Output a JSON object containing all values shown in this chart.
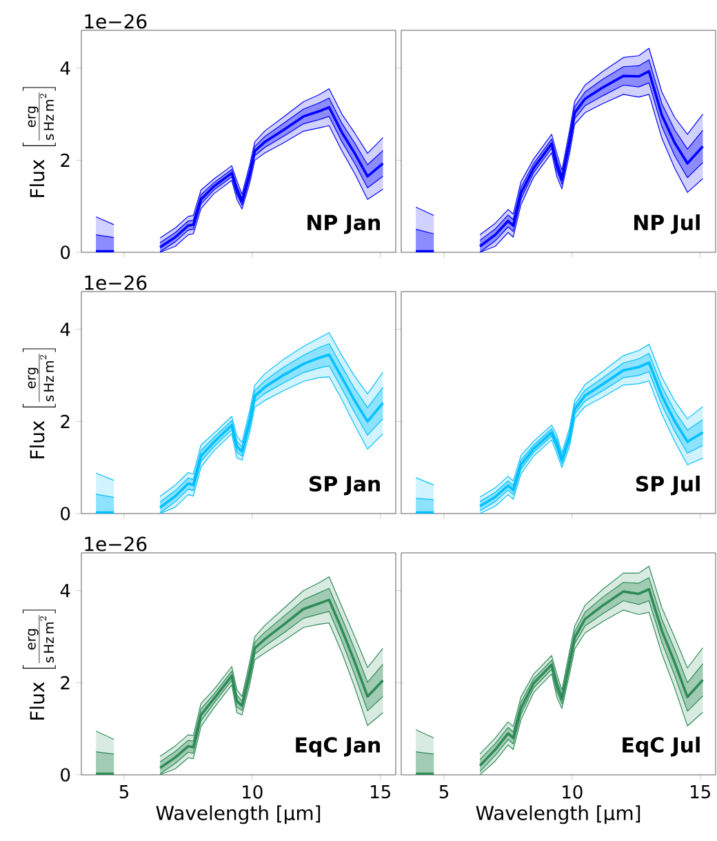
{
  "chart_data": [
    {
      "type": "line",
      "title": "NP Jan",
      "annotations": [
        "1e−26"
      ],
      "ylabel": "\\mathrm{Flux}\\ \\left[\\frac{\\mathrm{erg}}{\\mathrm{s\\,Hz\\,m}^{2}}\\right]",
      "tick_labels": "y",
      "xlim": [
        3.33,
        15.6
      ],
      "ylim": [
        0,
        4.82
      ],
      "xticks": [
        5,
        10,
        15
      ],
      "yticks": [
        0,
        2,
        4
      ],
      "x": [
        3.9,
        4.6,
        5.5,
        6.4,
        7.0,
        7.5,
        7.7,
        8.0,
        8.5,
        9.2,
        9.4,
        9.6,
        9.9,
        10.1,
        10.5,
        11.2,
        12.0,
        12.6,
        13.0,
        13.5,
        14.0,
        14.5,
        15.1
      ],
      "series": [
        {
          "color": "#0000ff",
          "values": [
            0.02,
            0.02,
            null,
            0.11,
            0.33,
            0.58,
            0.6,
            1.15,
            1.43,
            1.72,
            1.35,
            1.1,
            1.7,
            2.2,
            2.4,
            2.65,
            2.95,
            3.06,
            3.15,
            2.6,
            2.15,
            1.65,
            1.93
          ]
        },
        {
          "color": "#0000ff",
          "values": [
            0,
            0,
            null,
            0,
            0.13,
            0.38,
            0.4,
            0.95,
            1.27,
            1.56,
            1.15,
            0.94,
            1.5,
            2.0,
            2.16,
            2.37,
            2.63,
            2.7,
            2.75,
            2.2,
            1.71,
            1.15,
            1.37
          ]
        },
        {
          "color": "#0000ff",
          "values": [
            0.77,
            0.6,
            null,
            0.31,
            0.53,
            0.78,
            0.8,
            1.35,
            1.59,
            1.88,
            1.55,
            1.26,
            1.9,
            2.4,
            2.64,
            2.93,
            3.27,
            3.42,
            3.55,
            3.0,
            2.59,
            2.15,
            2.49
          ],
          "lower": [
            0,
            0,
            null,
            0,
            0.13,
            0.38,
            0.4,
            0.95,
            1.27,
            1.56,
            1.15,
            0.94,
            1.5,
            2.0,
            2.16,
            2.37,
            2.63,
            2.7,
            2.75,
            2.2,
            1.71,
            1.15,
            1.37
          ],
          "upper": [
            0.77,
            0.6,
            null,
            0.31,
            0.53,
            0.78,
            0.8,
            1.35,
            1.59,
            1.88,
            1.55,
            1.26,
            1.9,
            2.4,
            2.64,
            2.93,
            3.27,
            3.42,
            3.55,
            3.0,
            2.59,
            2.15,
            2.49
          ]
        },
        {
          "color": "#0000ff",
          "values": [
            0,
            0,
            null,
            0.01,
            0.23,
            0.48,
            0.5,
            1.05,
            1.35,
            1.64,
            1.25,
            1.02,
            1.6,
            2.1,
            2.28,
            2.51,
            2.79,
            2.88,
            2.95,
            2.4,
            1.93,
            1.4,
            1.65
          ]
        },
        {
          "color": "#0000ff",
          "values": [
            0.38,
            0.32,
            null,
            0.21,
            0.43,
            0.68,
            0.7,
            1.25,
            1.51,
            1.8,
            1.45,
            1.18,
            1.8,
            2.3,
            2.52,
            2.79,
            3.11,
            3.24,
            3.35,
            2.8,
            2.37,
            1.9,
            2.21
          ],
          "lower": [
            0,
            0,
            null,
            0.01,
            0.23,
            0.48,
            0.5,
            1.05,
            1.35,
            1.64,
            1.25,
            1.02,
            1.6,
            2.1,
            2.28,
            2.51,
            2.79,
            2.88,
            2.95,
            2.4,
            1.93,
            1.4,
            1.65
          ],
          "upper": [
            0.38,
            0.32,
            null,
            0.21,
            0.43,
            0.68,
            0.7,
            1.25,
            1.51,
            1.8,
            1.45,
            1.18,
            1.8,
            2.3,
            2.52,
            2.79,
            3.11,
            3.24,
            3.35,
            2.8,
            2.37,
            1.9,
            2.21
          ]
        }
      ]
    },
    {
      "type": "line",
      "title": "NP Jul",
      "tick_labels": false,
      "xlim": [
        3.33,
        15.6
      ],
      "ylim": [
        0,
        4.82
      ],
      "xticks": [
        5,
        10,
        15
      ],
      "yticks": [
        0,
        2,
        4
      ],
      "x": [
        3.9,
        4.6,
        5.5,
        6.4,
        7.0,
        7.5,
        7.7,
        8.0,
        8.5,
        9.2,
        9.4,
        9.6,
        9.9,
        10.1,
        10.5,
        11.2,
        12.0,
        12.6,
        13.0,
        13.5,
        14.0,
        14.5,
        15.1
      ],
      "series": [
        {
          "color": "#0000ff",
          "values": [
            0.02,
            0.02,
            null,
            0.13,
            0.38,
            0.68,
            0.58,
            1.28,
            1.83,
            2.36,
            1.9,
            1.58,
            2.4,
            3.03,
            3.33,
            3.58,
            3.83,
            3.82,
            3.93,
            2.98,
            2.38,
            1.93,
            2.3
          ]
        },
        {
          "color": "#0000ff",
          "values": [
            0,
            0,
            null,
            0,
            0.13,
            0.43,
            0.33,
            1.03,
            1.63,
            2.16,
            1.65,
            1.38,
            2.15,
            2.78,
            3.03,
            3.23,
            3.43,
            3.37,
            3.43,
            2.48,
            1.83,
            1.3,
            1.6
          ]
        },
        {
          "color": "#0000ff",
          "values": [
            0.98,
            0.8,
            null,
            0.38,
            0.63,
            0.93,
            0.83,
            1.53,
            2.03,
            2.56,
            2.15,
            1.78,
            2.65,
            3.28,
            3.63,
            3.93,
            4.23,
            4.27,
            4.43,
            3.48,
            2.93,
            2.56,
            3.0
          ],
          "lower": [
            0,
            0,
            null,
            0,
            0.13,
            0.43,
            0.33,
            1.03,
            1.63,
            2.16,
            1.65,
            1.38,
            2.15,
            2.78,
            3.03,
            3.23,
            3.43,
            3.37,
            3.43,
            2.48,
            1.83,
            1.3,
            1.6
          ],
          "upper": [
            0.98,
            0.8,
            null,
            0.38,
            0.63,
            0.93,
            0.83,
            1.53,
            2.03,
            2.56,
            2.15,
            1.78,
            2.65,
            3.28,
            3.63,
            3.93,
            4.23,
            4.27,
            4.43,
            3.48,
            2.93,
            2.56,
            3.0
          ]
        },
        {
          "color": "#0000ff",
          "values": [
            0,
            0,
            null,
            0,
            0.25,
            0.55,
            0.45,
            1.15,
            1.73,
            2.26,
            1.77,
            1.48,
            2.27,
            2.9,
            3.18,
            3.4,
            3.63,
            3.59,
            3.68,
            2.73,
            2.1,
            1.62,
            1.95
          ]
        },
        {
          "color": "#0000ff",
          "values": [
            0.5,
            0.4,
            null,
            0.26,
            0.51,
            0.81,
            0.71,
            1.41,
            1.93,
            2.46,
            2.03,
            1.68,
            2.53,
            3.16,
            3.48,
            3.76,
            4.03,
            4.05,
            4.18,
            3.23,
            2.66,
            2.24,
            2.65
          ],
          "lower": [
            0,
            0,
            null,
            0,
            0.25,
            0.55,
            0.45,
            1.15,
            1.73,
            2.26,
            1.77,
            1.48,
            2.27,
            2.9,
            3.18,
            3.4,
            3.63,
            3.59,
            3.68,
            2.73,
            2.1,
            1.62,
            1.95
          ],
          "upper": [
            0.5,
            0.4,
            null,
            0.26,
            0.51,
            0.81,
            0.71,
            1.41,
            1.93,
            2.46,
            2.03,
            1.68,
            2.53,
            3.16,
            3.48,
            3.76,
            4.03,
            4.05,
            4.18,
            3.23,
            2.66,
            2.24,
            2.65
          ]
        }
      ]
    },
    {
      "type": "line",
      "title": "SP Jan",
      "annotations": [
        "1e−26"
      ],
      "ylabel": "\\mathrm{Flux}\\ \\left[\\frac{\\mathrm{erg}}{\\mathrm{s\\,Hz\\,m}^{2}}\\right]",
      "tick_labels": "y",
      "xlim": [
        3.33,
        15.6
      ],
      "ylim": [
        0,
        4.82
      ],
      "xticks": [
        5,
        10,
        15
      ],
      "yticks": [
        0,
        2,
        4
      ],
      "x": [
        3.9,
        4.6,
        5.5,
        6.4,
        7.0,
        7.5,
        7.7,
        8.0,
        8.5,
        9.2,
        9.4,
        9.6,
        9.9,
        10.1,
        10.5,
        11.2,
        12.0,
        12.6,
        13.0,
        13.5,
        14.0,
        14.5,
        15.1
      ],
      "series": [
        {
          "color": "#00bfff",
          "values": [
            0.02,
            0.02,
            null,
            0.13,
            0.38,
            0.65,
            0.62,
            1.25,
            1.55,
            1.92,
            1.45,
            1.35,
            2.0,
            2.55,
            2.75,
            3.0,
            3.25,
            3.38,
            3.45,
            2.95,
            2.45,
            2.0,
            2.4
          ]
        },
        {
          "color": "#00bfff",
          "values": [
            0,
            0,
            null,
            0,
            0.14,
            0.41,
            0.38,
            1.01,
            1.36,
            1.73,
            1.21,
            1.16,
            1.76,
            2.31,
            2.46,
            2.66,
            2.87,
            2.95,
            2.97,
            2.47,
            1.92,
            1.4,
            1.73
          ]
        },
        {
          "color": "#00bfff",
          "values": [
            0.88,
            0.72,
            null,
            0.37,
            0.62,
            0.89,
            0.86,
            1.49,
            1.74,
            2.11,
            1.69,
            1.54,
            2.24,
            2.79,
            3.04,
            3.34,
            3.63,
            3.81,
            3.93,
            3.43,
            2.98,
            2.6,
            3.07
          ],
          "lower": [
            0,
            0,
            null,
            0,
            0.14,
            0.41,
            0.38,
            1.01,
            1.36,
            1.73,
            1.21,
            1.16,
            1.76,
            2.31,
            2.46,
            2.66,
            2.87,
            2.95,
            2.97,
            2.47,
            1.92,
            1.4,
            1.73
          ],
          "upper": [
            0.88,
            0.72,
            null,
            0.37,
            0.62,
            0.89,
            0.86,
            1.49,
            1.74,
            2.11,
            1.69,
            1.54,
            2.24,
            2.79,
            3.04,
            3.34,
            3.63,
            3.81,
            3.93,
            3.43,
            2.98,
            2.6,
            3.07
          ]
        },
        {
          "color": "#00bfff",
          "values": [
            0,
            0,
            null,
            0.01,
            0.26,
            0.53,
            0.5,
            1.13,
            1.45,
            1.82,
            1.33,
            1.25,
            1.88,
            2.43,
            2.61,
            2.83,
            3.06,
            3.16,
            3.21,
            2.71,
            2.19,
            1.7,
            2.06
          ]
        },
        {
          "color": "#00bfff",
          "values": [
            0.42,
            0.35,
            null,
            0.25,
            0.5,
            0.77,
            0.74,
            1.37,
            1.65,
            2.02,
            1.57,
            1.45,
            2.12,
            2.67,
            2.89,
            3.17,
            3.44,
            3.6,
            3.69,
            3.19,
            2.71,
            2.3,
            2.74
          ],
          "lower": [
            0,
            0,
            null,
            0.01,
            0.26,
            0.53,
            0.5,
            1.13,
            1.45,
            1.82,
            1.33,
            1.25,
            1.88,
            2.43,
            2.61,
            2.83,
            3.06,
            3.16,
            3.21,
            2.71,
            2.19,
            1.7,
            2.06
          ],
          "upper": [
            0.42,
            0.35,
            null,
            0.25,
            0.5,
            0.77,
            0.74,
            1.37,
            1.65,
            2.02,
            1.57,
            1.45,
            2.12,
            2.67,
            2.89,
            3.17,
            3.44,
            3.6,
            3.69,
            3.19,
            2.71,
            2.3,
            2.74
          ]
        }
      ]
    },
    {
      "type": "line",
      "title": "SP Jul",
      "tick_labels": false,
      "xlim": [
        3.33,
        15.6
      ],
      "ylim": [
        0,
        4.82
      ],
      "xticks": [
        5,
        10,
        15
      ],
      "yticks": [
        0,
        2,
        4
      ],
      "x": [
        3.9,
        4.6,
        5.5,
        6.4,
        7.0,
        7.5,
        7.7,
        8.0,
        8.5,
        9.2,
        9.4,
        9.6,
        9.9,
        10.1,
        10.5,
        11.2,
        12.0,
        12.6,
        13.0,
        13.5,
        14.0,
        14.5,
        15.1
      ],
      "series": [
        {
          "color": "#00bfff",
          "values": [
            0.02,
            0.02,
            null,
            0.16,
            0.36,
            0.61,
            0.51,
            1.06,
            1.41,
            1.76,
            1.51,
            1.16,
            1.66,
            2.26,
            2.56,
            2.81,
            3.11,
            3.18,
            3.28,
            2.56,
            2.01,
            1.56,
            1.76
          ]
        },
        {
          "color": "#00bfff",
          "values": [
            0,
            0,
            null,
            0,
            0.16,
            0.41,
            0.31,
            0.86,
            1.25,
            1.6,
            1.31,
            1.0,
            1.46,
            2.06,
            2.32,
            2.53,
            2.79,
            2.82,
            2.88,
            2.16,
            1.57,
            1.06,
            1.2
          ]
        },
        {
          "color": "#00bfff",
          "values": [
            0.78,
            0.62,
            null,
            0.36,
            0.56,
            0.81,
            0.71,
            1.26,
            1.57,
            1.92,
            1.71,
            1.32,
            1.86,
            2.46,
            2.8,
            3.09,
            3.43,
            3.54,
            3.68,
            2.96,
            2.45,
            2.06,
            2.32
          ],
          "lower": [
            0,
            0,
            null,
            0,
            0.16,
            0.41,
            0.31,
            0.86,
            1.25,
            1.6,
            1.31,
            1.0,
            1.46,
            2.06,
            2.32,
            2.53,
            2.79,
            2.82,
            2.88,
            2.16,
            1.57,
            1.06,
            1.2
          ],
          "upper": [
            0.78,
            0.62,
            null,
            0.36,
            0.56,
            0.81,
            0.71,
            1.26,
            1.57,
            1.92,
            1.71,
            1.32,
            1.86,
            2.46,
            2.8,
            3.09,
            3.43,
            3.54,
            3.68,
            2.96,
            2.45,
            2.06,
            2.32
          ]
        },
        {
          "color": "#00bfff",
          "values": [
            0,
            0,
            null,
            0.06,
            0.26,
            0.51,
            0.41,
            0.96,
            1.33,
            1.68,
            1.41,
            1.08,
            1.56,
            2.16,
            2.44,
            2.67,
            2.95,
            3.0,
            3.08,
            2.36,
            1.79,
            1.31,
            1.48
          ]
        },
        {
          "color": "#00bfff",
          "values": [
            0.33,
            0.3,
            null,
            0.26,
            0.46,
            0.71,
            0.61,
            1.16,
            1.49,
            1.84,
            1.61,
            1.24,
            1.76,
            2.36,
            2.68,
            2.95,
            3.27,
            3.36,
            3.48,
            2.76,
            2.23,
            1.81,
            2.04
          ],
          "lower": [
            0,
            0,
            null,
            0.06,
            0.26,
            0.51,
            0.41,
            0.96,
            1.33,
            1.68,
            1.41,
            1.08,
            1.56,
            2.16,
            2.44,
            2.67,
            2.95,
            3.0,
            3.08,
            2.36,
            1.79,
            1.31,
            1.48
          ],
          "upper": [
            0.33,
            0.3,
            null,
            0.26,
            0.46,
            0.71,
            0.61,
            1.16,
            1.49,
            1.84,
            1.61,
            1.24,
            1.76,
            2.36,
            2.68,
            2.95,
            3.27,
            3.36,
            3.48,
            2.76,
            2.23,
            1.81,
            2.04
          ]
        }
      ]
    },
    {
      "type": "line",
      "title": "EqC Jan",
      "annotations": [
        "1e−26"
      ],
      "xlabel": "Wavelength [μm]",
      "ylabel": "\\mathrm{Flux}\\ \\left[\\frac{\\mathrm{erg}}{\\mathrm{s\\,Hz\\,m}^{2}}\\right]",
      "xlim": [
        3.33,
        15.6
      ],
      "ylim": [
        0,
        4.82
      ],
      "xticks": [
        5,
        10,
        15
      ],
      "yticks": [
        0,
        2,
        4
      ],
      "x": [
        3.9,
        4.6,
        5.5,
        6.4,
        7.0,
        7.5,
        7.7,
        8.0,
        8.5,
        9.2,
        9.4,
        9.6,
        9.9,
        10.1,
        10.5,
        11.2,
        12.0,
        12.6,
        13.0,
        13.5,
        14.0,
        14.5,
        15.1
      ],
      "series": [
        {
          "color": "#2e8b57",
          "values": [
            0.02,
            0.02,
            null,
            0.15,
            0.38,
            0.62,
            0.6,
            1.3,
            1.65,
            2.15,
            1.6,
            1.5,
            2.2,
            2.75,
            2.95,
            3.25,
            3.6,
            3.72,
            3.8,
            3.15,
            2.45,
            1.7,
            2.05
          ]
        },
        {
          "color": "#2e8b57",
          "values": [
            0,
            0,
            null,
            0,
            0.13,
            0.37,
            0.35,
            1.05,
            1.45,
            1.95,
            1.35,
            1.3,
            1.95,
            2.5,
            2.65,
            2.9,
            3.2,
            3.27,
            3.3,
            2.65,
            1.9,
            1.07,
            1.35
          ]
        },
        {
          "color": "#2e8b57",
          "values": [
            0.95,
            0.77,
            null,
            0.4,
            0.63,
            0.87,
            0.85,
            1.55,
            1.85,
            2.35,
            1.85,
            1.7,
            2.45,
            3.0,
            3.25,
            3.6,
            4.0,
            4.17,
            4.3,
            3.65,
            3.0,
            2.33,
            2.75
          ],
          "lower": [
            0,
            0,
            null,
            0,
            0.13,
            0.37,
            0.35,
            1.05,
            1.45,
            1.95,
            1.35,
            1.3,
            1.95,
            2.5,
            2.65,
            2.9,
            3.2,
            3.27,
            3.3,
            2.65,
            1.9,
            1.07,
            1.35
          ],
          "upper": [
            0.95,
            0.77,
            null,
            0.4,
            0.63,
            0.87,
            0.85,
            1.55,
            1.85,
            2.35,
            1.85,
            1.7,
            2.45,
            3.0,
            3.25,
            3.6,
            4.0,
            4.17,
            4.3,
            3.65,
            3.0,
            2.33,
            2.75
          ]
        },
        {
          "color": "#2e8b57",
          "values": [
            0,
            0,
            null,
            0.02,
            0.25,
            0.49,
            0.47,
            1.17,
            1.55,
            2.05,
            1.47,
            1.4,
            2.07,
            2.62,
            2.8,
            3.07,
            3.4,
            3.49,
            3.55,
            2.9,
            2.17,
            1.39,
            1.7
          ]
        },
        {
          "color": "#2e8b57",
          "values": [
            0.5,
            0.45,
            null,
            0.28,
            0.51,
            0.75,
            0.73,
            1.43,
            1.75,
            2.25,
            1.73,
            1.6,
            2.33,
            2.88,
            3.1,
            3.43,
            3.8,
            3.95,
            4.05,
            3.4,
            2.73,
            2.01,
            2.4
          ],
          "lower": [
            0,
            0,
            null,
            0.02,
            0.25,
            0.49,
            0.47,
            1.17,
            1.55,
            2.05,
            1.47,
            1.4,
            2.07,
            2.62,
            2.8,
            3.07,
            3.4,
            3.49,
            3.55,
            2.9,
            2.17,
            1.39,
            1.7
          ],
          "upper": [
            0.5,
            0.45,
            null,
            0.28,
            0.51,
            0.75,
            0.73,
            1.43,
            1.75,
            2.25,
            1.73,
            1.6,
            2.33,
            2.88,
            3.1,
            3.43,
            3.8,
            3.95,
            4.05,
            3.4,
            2.73,
            2.01,
            2.4
          ]
        }
      ]
    },
    {
      "type": "line",
      "title": "EqC Jul",
      "xlabel": "Wavelength [μm]",
      "tick_labels": "x",
      "xlim": [
        3.33,
        15.6
      ],
      "ylim": [
        0,
        4.82
      ],
      "xticks": [
        5,
        10,
        15
      ],
      "yticks": [
        0,
        2,
        4
      ],
      "x": [
        3.9,
        4.6,
        5.5,
        6.4,
        7.0,
        7.5,
        7.7,
        8.0,
        8.5,
        9.2,
        9.4,
        9.6,
        9.9,
        10.1,
        10.5,
        11.2,
        12.0,
        12.6,
        13.0,
        13.5,
        14.0,
        14.5,
        15.1
      ],
      "series": [
        {
          "color": "#2e8b57",
          "values": [
            0.02,
            0.02,
            null,
            0.2,
            0.55,
            0.9,
            0.8,
            1.44,
            1.99,
            2.39,
            1.94,
            1.64,
            2.44,
            2.98,
            3.38,
            3.68,
            3.98,
            3.93,
            4.03,
            3.13,
            2.44,
            1.69,
            2.06
          ]
        },
        {
          "color": "#2e8b57",
          "values": [
            0,
            0,
            null,
            0,
            0.3,
            0.65,
            0.55,
            1.19,
            1.79,
            2.19,
            1.69,
            1.44,
            2.19,
            2.73,
            3.08,
            3.33,
            3.58,
            3.48,
            3.53,
            2.63,
            1.89,
            1.06,
            1.36
          ]
        },
        {
          "color": "#2e8b57",
          "values": [
            0.98,
            0.8,
            null,
            0.45,
            0.8,
            1.15,
            1.05,
            1.69,
            2.19,
            2.59,
            2.19,
            1.84,
            2.69,
            3.23,
            3.68,
            4.03,
            4.38,
            4.38,
            4.53,
            3.63,
            2.99,
            2.32,
            2.76
          ],
          "lower": [
            0,
            0,
            null,
            0,
            0.3,
            0.65,
            0.55,
            1.19,
            1.79,
            2.19,
            1.69,
            1.44,
            2.19,
            2.73,
            3.08,
            3.33,
            3.58,
            3.48,
            3.53,
            2.63,
            1.89,
            1.06,
            1.36
          ],
          "upper": [
            0.98,
            0.8,
            null,
            0.45,
            0.8,
            1.15,
            1.05,
            1.69,
            2.19,
            2.59,
            2.19,
            1.84,
            2.69,
            3.23,
            3.68,
            4.03,
            4.38,
            4.38,
            4.53,
            3.63,
            2.99,
            2.32,
            2.76
          ]
        },
        {
          "color": "#2e8b57",
          "values": [
            0,
            0,
            null,
            0.07,
            0.42,
            0.77,
            0.67,
            1.31,
            1.89,
            2.29,
            1.81,
            1.54,
            2.31,
            2.85,
            3.23,
            3.5,
            3.78,
            3.7,
            3.78,
            2.88,
            2.16,
            1.38,
            1.71
          ]
        },
        {
          "color": "#2e8b57",
          "values": [
            0.5,
            0.45,
            null,
            0.33,
            0.68,
            1.03,
            0.93,
            1.57,
            2.09,
            2.49,
            2.07,
            1.74,
            2.57,
            3.11,
            3.53,
            3.86,
            4.18,
            4.16,
            4.28,
            3.38,
            2.72,
            2.0,
            2.41
          ],
          "lower": [
            0,
            0,
            null,
            0.07,
            0.42,
            0.77,
            0.67,
            1.31,
            1.89,
            2.29,
            1.81,
            1.54,
            2.31,
            2.85,
            3.23,
            3.5,
            3.78,
            3.7,
            3.78,
            2.88,
            2.16,
            1.38,
            1.71
          ],
          "upper": [
            0.5,
            0.45,
            null,
            0.33,
            0.68,
            1.03,
            0.93,
            1.57,
            2.09,
            2.49,
            2.07,
            1.74,
            2.57,
            3.11,
            3.53,
            3.86,
            4.18,
            4.16,
            4.28,
            3.38,
            2.72,
            2.0,
            2.41
          ]
        }
      ]
    }
  ]
}
